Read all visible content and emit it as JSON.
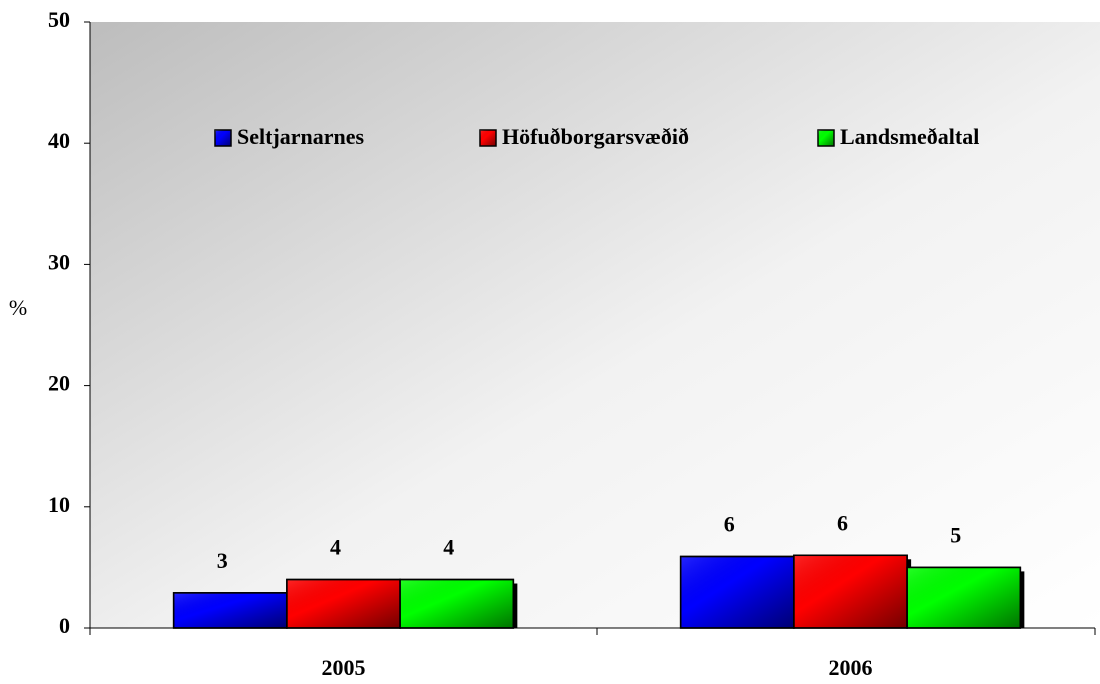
{
  "chart_data": {
    "type": "bar",
    "y_label": "%",
    "categories": [
      "2005",
      "2006"
    ],
    "series": [
      {
        "name": "Seltjarnarnes",
        "color": "#0000ff",
        "values": [
          2.9,
          5.9
        ],
        "value_labels": [
          "3",
          "6"
        ]
      },
      {
        "name": "Höfuðborgarsvæðið",
        "color": "#ff0000",
        "values": [
          4,
          6
        ],
        "value_labels": [
          "4",
          "6"
        ]
      },
      {
        "name": "Landsmeðaltal",
        "color": "#00ff00",
        "values": [
          4,
          5
        ],
        "value_labels": [
          "4",
          "5"
        ]
      }
    ],
    "ylim": [
      0,
      50
    ],
    "yticks": [
      0,
      10,
      20,
      30,
      40,
      50
    ],
    "grid": false,
    "legend": "top"
  }
}
